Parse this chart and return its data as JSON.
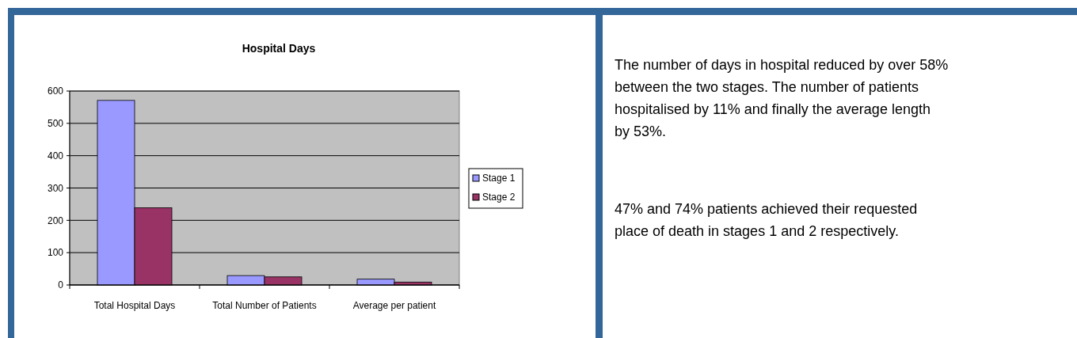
{
  "chart_data": {
    "type": "bar",
    "title": "Hospital Days",
    "categories": [
      "Total Hospital Days",
      "Total Number of Patients",
      "Average per patient"
    ],
    "series": [
      {
        "name": "Stage 1",
        "color": "#9999ff",
        "values": [
          571,
          29,
          18
        ]
      },
      {
        "name": "Stage 2",
        "color": "#993366",
        "values": [
          239,
          25,
          9
        ]
      }
    ],
    "ylim": [
      0,
      600
    ],
    "yticks": [
      0,
      100,
      200,
      300,
      400,
      500,
      600
    ],
    "grid": "y",
    "legend": "right",
    "annotations": [
      "The number of days in hospital reduced by over 58% between the two stages. The number of patients hospitalised by 11% and finally the average length by 53%.",
      "47% and 74% patients achieved their requested place of death in stages 1 and 2 respectively."
    ]
  }
}
